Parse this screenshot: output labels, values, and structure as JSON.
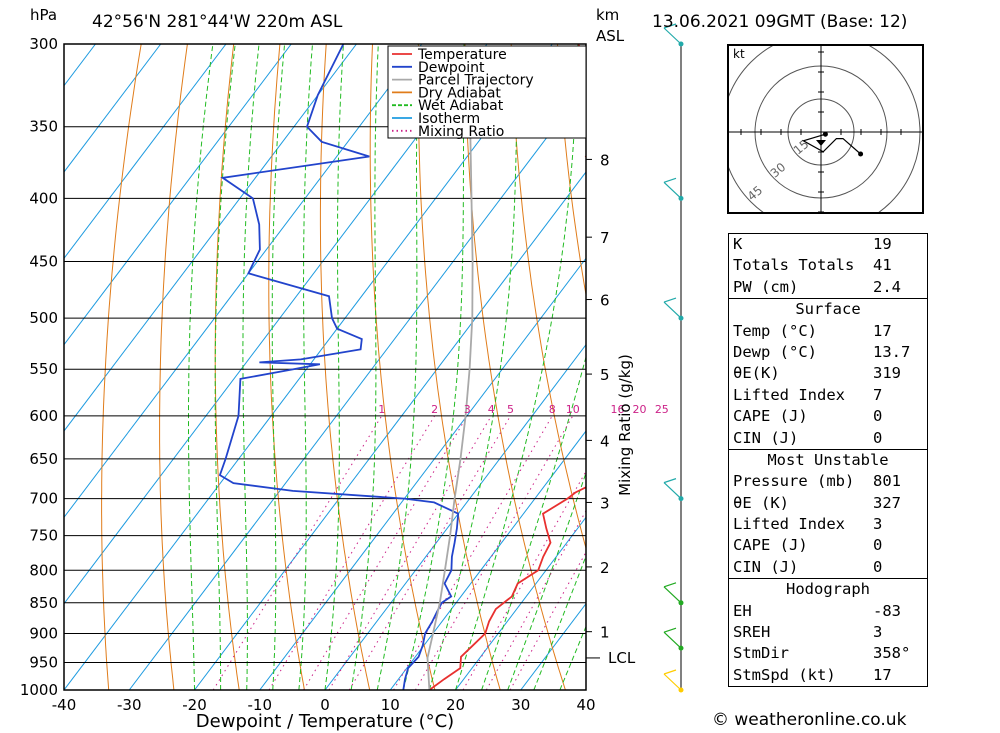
{
  "header": {
    "location": "42°56'N  281°44'W  220m  ASL",
    "datetime": "13.06.2021  09GMT  (Base: 12)",
    "left_unit": "hPa",
    "right_unit_top": "km",
    "right_unit_bottom": "ASL"
  },
  "chart_data": {
    "type": "line",
    "title": "42°56'N  281°44'W  220m  ASL",
    "xlabel": "Dewpoint / Temperature (°C)",
    "ylabel": "hPa",
    "right_axis_label": "Mixing Ratio (g/kg)",
    "xlim": [
      -40,
      40
    ],
    "ylim": [
      1000,
      300
    ],
    "y_log": true,
    "skew": true,
    "grid": true,
    "legend_position": "top-right",
    "x_ticks": [
      -40,
      -30,
      -20,
      -10,
      0,
      10,
      20,
      30,
      40
    ],
    "x_tick_labels": [
      "-40",
      "-30",
      "-20",
      "-10",
      "0",
      "10",
      "20",
      "30",
      "40"
    ],
    "pressure_levels": [
      300,
      350,
      400,
      450,
      500,
      550,
      600,
      650,
      700,
      750,
      800,
      850,
      900,
      950,
      1000
    ],
    "km_ticks": [
      {
        "label": "8",
        "p": 372
      },
      {
        "label": "7",
        "p": 430
      },
      {
        "label": "6",
        "p": 483
      },
      {
        "label": "5",
        "p": 555
      },
      {
        "label": "4",
        "p": 628
      },
      {
        "label": "3",
        "p": 705
      },
      {
        "label": "2",
        "p": 795
      },
      {
        "label": "1",
        "p": 897
      }
    ],
    "lcl_label": "LCL",
    "lcl_p": 942,
    "mixing_ratio_labels": [
      "1",
      "2",
      "3",
      "4",
      "5",
      "8",
      "10",
      "16",
      "20",
      "25"
    ],
    "mixing_ratio_values": [
      1,
      2,
      3,
      4,
      5,
      8,
      10,
      16,
      20,
      25
    ],
    "legend": [
      "Temperature",
      "Dewpoint",
      "Parcel Trajectory",
      "Dry Adiabat",
      "Wet Adiabat",
      "Isotherm",
      "Mixing Ratio"
    ],
    "series": [
      {
        "name": "Temperature",
        "color": "#e8302f",
        "points": [
          [
            1000,
            16.0
          ],
          [
            980,
            17.0
          ],
          [
            960,
            18.2
          ],
          [
            940,
            17.0
          ],
          [
            920,
            17.5
          ],
          [
            900,
            18.0
          ],
          [
            880,
            17.2
          ],
          [
            860,
            16.8
          ],
          [
            840,
            17.8
          ],
          [
            820,
            17.2
          ],
          [
            800,
            18.8
          ],
          [
            780,
            18.0
          ],
          [
            760,
            17.5
          ],
          [
            740,
            15.2
          ],
          [
            720,
            13.0
          ],
          [
            700,
            15.0
          ],
          [
            692,
            15.5
          ],
          [
            680,
            17.3
          ],
          [
            660,
            15.7
          ],
          [
            640,
            13.8
          ],
          [
            620,
            12.0
          ],
          [
            600,
            10.0
          ],
          [
            580,
            8.0
          ],
          [
            560,
            5.8
          ],
          [
            540,
            3.5
          ],
          [
            520,
            1.2
          ],
          [
            500,
            -1.5
          ],
          [
            480,
            -4.2
          ],
          [
            460,
            -7.5
          ],
          [
            440,
            -10.0
          ],
          [
            420,
            -13.0
          ],
          [
            400,
            -16.0
          ],
          [
            380,
            -19.0
          ],
          [
            370,
            -21.8
          ],
          [
            365,
            -20.5
          ],
          [
            355,
            -22.3
          ],
          [
            345,
            -24.8
          ],
          [
            330,
            -28.0
          ],
          [
            315,
            -31.5
          ],
          [
            300,
            -36.0
          ]
        ]
      },
      {
        "name": "Dewpoint",
        "color": "#2244cc",
        "points": [
          [
            1000,
            12.0
          ],
          [
            980,
            11.0
          ],
          [
            960,
            10.2
          ],
          [
            940,
            10.5
          ],
          [
            920,
            9.8
          ],
          [
            900,
            8.8
          ],
          [
            880,
            8.5
          ],
          [
            860,
            8.0
          ],
          [
            850,
            7.8
          ],
          [
            840,
            8.5
          ],
          [
            820,
            6.0
          ],
          [
            800,
            5.5
          ],
          [
            780,
            4.0
          ],
          [
            760,
            2.8
          ],
          [
            740,
            1.5
          ],
          [
            720,
            0.0
          ],
          [
            705,
            -5.0
          ],
          [
            700,
            -10.0
          ],
          [
            690,
            -28.0
          ],
          [
            680,
            -38.0
          ],
          [
            670,
            -41.0
          ],
          [
            650,
            -42.0
          ],
          [
            600,
            -45.0
          ],
          [
            560,
            -49.0
          ],
          [
            550,
            -42.0
          ],
          [
            545,
            -38.5
          ],
          [
            543,
            -48.0
          ],
          [
            540,
            -42.0
          ],
          [
            530,
            -34.0
          ],
          [
            520,
            -35.0
          ],
          [
            510,
            -40.0
          ],
          [
            500,
            -42.0
          ],
          [
            480,
            -45.0
          ],
          [
            460,
            -60.0
          ],
          [
            440,
            -61.0
          ],
          [
            420,
            -64.0
          ],
          [
            400,
            -68.0
          ],
          [
            385,
            -75.0
          ],
          [
            370,
            -55.0
          ],
          [
            360,
            -64.0
          ],
          [
            350,
            -68.0
          ],
          [
            330,
            -70.0
          ],
          [
            300,
            -72.0
          ]
        ]
      },
      {
        "name": "Parcel Trajectory",
        "color": "#a9a9a9",
        "points": [
          [
            1000,
            16.0
          ],
          [
            942,
            12.0
          ],
          [
            900,
            10.0
          ],
          [
            850,
            7.5
          ],
          [
            800,
            4.5
          ],
          [
            750,
            1.3
          ],
          [
            700,
            -2.3
          ],
          [
            650,
            -6.0
          ],
          [
            600,
            -10.2
          ],
          [
            550,
            -15.0
          ],
          [
            500,
            -20.5
          ],
          [
            450,
            -27.0
          ],
          [
            400,
            -34.5
          ],
          [
            350,
            -43.0
          ],
          [
            320,
            -48.5
          ]
        ]
      }
    ]
  },
  "hodograph": {
    "unit": "kt",
    "ring_labels": [
      "15",
      "30",
      "45"
    ],
    "points_kt": [
      [
        2,
        -1
      ],
      [
        -8,
        -4
      ],
      [
        1,
        -9
      ],
      [
        7,
        -3
      ],
      [
        10,
        -3
      ],
      [
        18,
        -10
      ]
    ]
  },
  "wind_barbs": {
    "color": "#22aaaa",
    "levels": [
      {
        "p": 300,
        "label": "barb-300"
      },
      {
        "p": 400,
        "label": "barb-400"
      },
      {
        "p": 500,
        "label": "barb-500"
      },
      {
        "p": 700,
        "label": "barb-700"
      },
      {
        "p": 850,
        "label": "barb-850"
      },
      {
        "p": 925,
        "label": "barb-925"
      },
      {
        "p": 1000,
        "label": "barb-1000"
      }
    ]
  },
  "stats": {
    "rows": [
      {
        "k": "K",
        "v": "19"
      },
      {
        "k": "Totals Totals",
        "v": "41"
      },
      {
        "k": "PW (cm)",
        "v": "2.4"
      }
    ],
    "surface_title": "Surface",
    "surface": [
      {
        "k": "Temp (°C)",
        "v": "17"
      },
      {
        "k": "Dewp (°C)",
        "v": "13.7"
      },
      {
        "k": "θE(K)",
        "v": "319"
      },
      {
        "k": "Lifted Index",
        "v": "7"
      },
      {
        "k": "CAPE (J)",
        "v": "0"
      },
      {
        "k": "CIN (J)",
        "v": "0"
      }
    ],
    "unstable_title": "Most Unstable",
    "unstable": [
      {
        "k": "Pressure (mb)",
        "v": "801"
      },
      {
        "k": "θE (K)",
        "v": "327"
      },
      {
        "k": "Lifted Index",
        "v": "3"
      },
      {
        "k": "CAPE (J)",
        "v": "0"
      },
      {
        "k": "CIN (J)",
        "v": "0"
      }
    ],
    "hodograph_title": "Hodograph",
    "hodograph_rows": [
      {
        "k": "EH",
        "v": "-83"
      },
      {
        "k": "SREH",
        "v": "3"
      },
      {
        "k": "StmDir",
        "v": "358°"
      },
      {
        "k": "StmSpd (kt)",
        "v": "17"
      }
    ]
  },
  "footer": "© weatheronline.co.uk"
}
